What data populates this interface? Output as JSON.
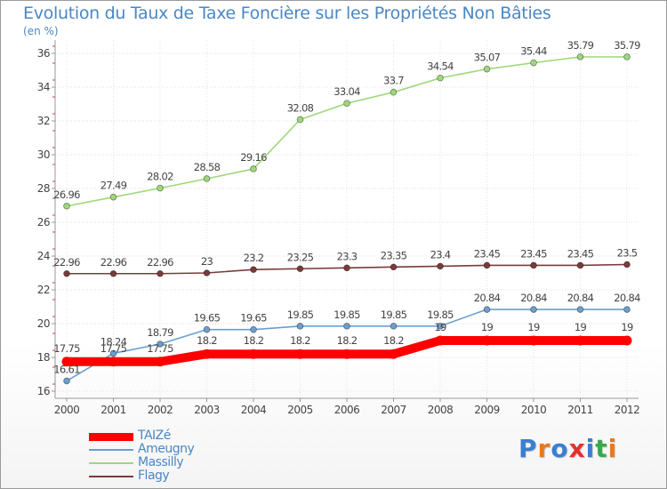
{
  "title": "Evolution du Taux de Taxe Foncière sur les Propriétés Non Bâties",
  "subtitle": "(en %)",
  "logo": {
    "text": "Proxiti",
    "colors": [
      "#3a7fd0",
      "#e87a1e",
      "#3a7fd0",
      "#e82e2e",
      "#3a7fd0",
      "#3aa84a",
      "#e87a1e"
    ]
  },
  "chart_data": {
    "type": "line",
    "x": [
      "2000",
      "2001",
      "2002",
      "2003",
      "2004",
      "2005",
      "2006",
      "2007",
      "2008",
      "2009",
      "2010",
      "2011",
      "2012"
    ],
    "ylim": [
      16,
      36
    ],
    "yticks": [
      "16",
      "18",
      "20",
      "22",
      "24",
      "26",
      "28",
      "30",
      "32",
      "34",
      "36"
    ],
    "grid": true,
    "legend": "bottom-left",
    "series": [
      {
        "name": "TAIZé",
        "color": "#ff0000",
        "values": [
          17.75,
          17.75,
          17.75,
          18.2,
          18.2,
          18.2,
          18.2,
          18.2,
          19,
          19,
          19,
          19,
          19
        ],
        "labels": [
          "17.75",
          "17.75",
          "17.75",
          "18.2",
          "18.2",
          "18.2",
          "18.2",
          "18.2",
          "19",
          "19",
          "19",
          "19",
          "19"
        ]
      },
      {
        "name": "Ameugny",
        "color": "#6b9fd0",
        "values": [
          16.61,
          18.24,
          18.79,
          19.65,
          19.65,
          19.85,
          19.85,
          19.85,
          19.85,
          20.84,
          20.84,
          20.84,
          20.84
        ],
        "labels": [
          "16.61",
          "18.24",
          "18.79",
          "19.65",
          "19.65",
          "19.85",
          "19.85",
          "19.85",
          "19.85",
          "20.84",
          "20.84",
          "20.84",
          "20.84"
        ]
      },
      {
        "name": "Massilly",
        "color": "#9ed87a",
        "values": [
          26.96,
          27.49,
          28.02,
          28.58,
          29.16,
          32.08,
          33.04,
          33.7,
          34.54,
          35.07,
          35.44,
          35.79,
          35.79
        ],
        "labels": [
          "26.96",
          "27.49",
          "28.02",
          "28.58",
          "29.16",
          "32.08",
          "33.04",
          "33.7",
          "34.54",
          "35.07",
          "35.44",
          "35.79",
          "35.79"
        ]
      },
      {
        "name": "Flagy",
        "color": "#7a3b3b",
        "values": [
          22.96,
          22.96,
          22.96,
          23,
          23.2,
          23.25,
          23.3,
          23.35,
          23.4,
          23.45,
          23.45,
          23.45,
          23.5
        ],
        "labels": [
          "22.96",
          "22.96",
          "22.96",
          "23",
          "23.2",
          "23.25",
          "23.3",
          "23.35",
          "23.4",
          "23.45",
          "23.45",
          "23.45",
          "23.5"
        ]
      }
    ]
  }
}
